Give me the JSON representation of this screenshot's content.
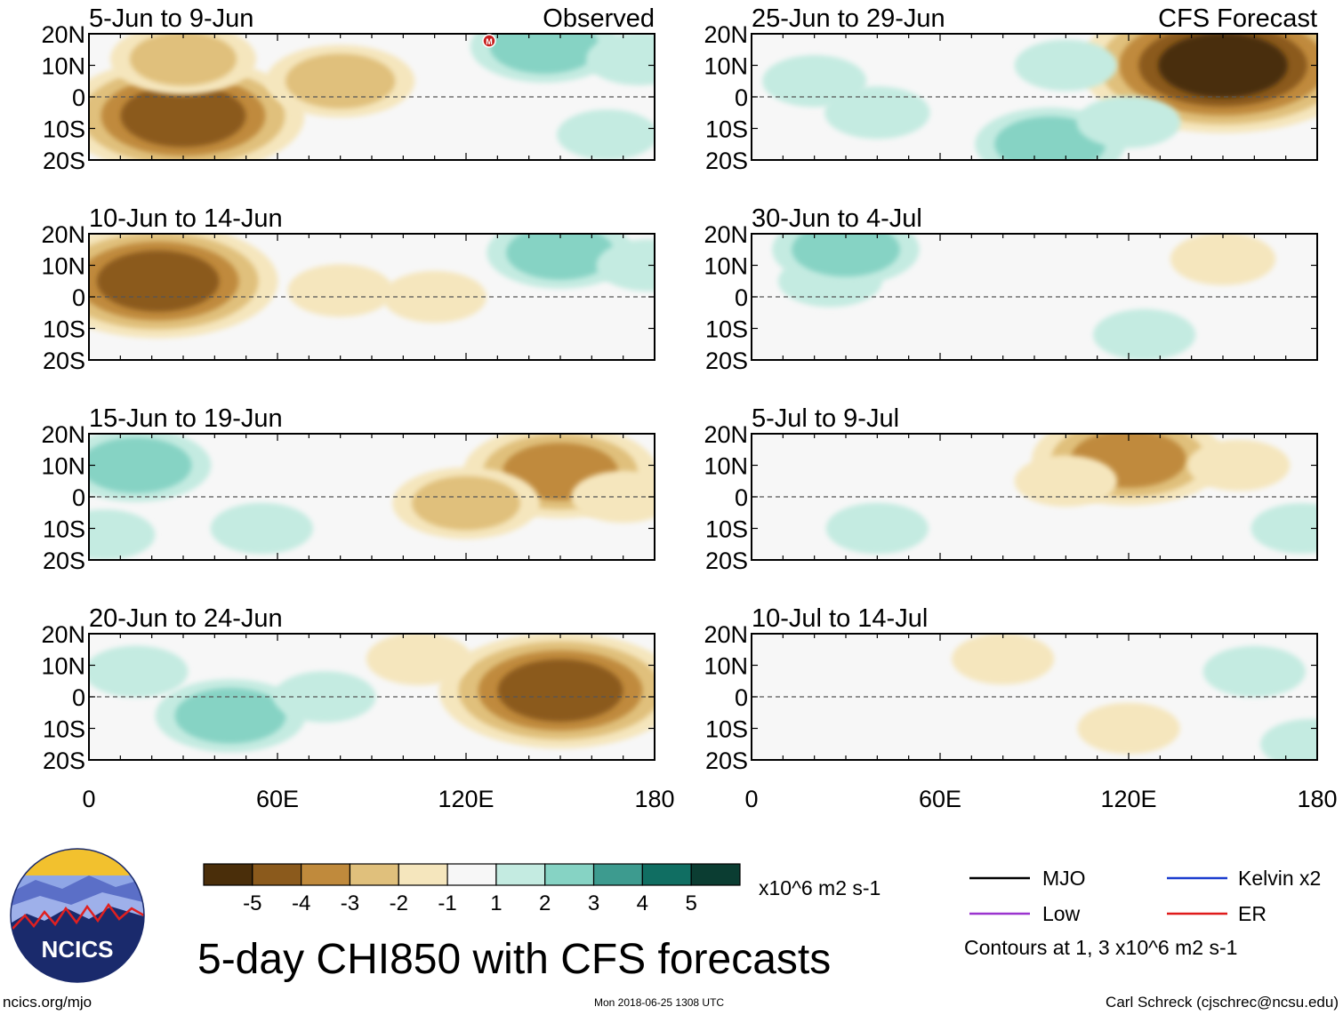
{
  "chart_data": {
    "type": "heatmap",
    "title": "5-day CHI850 with CFS forecasts",
    "variable": "CHI850 anomaly",
    "units": "x10^6 m2 s-1",
    "x_axis": {
      "range": [
        0,
        180
      ],
      "ticks": [
        "0",
        "60E",
        "120E",
        "180"
      ]
    },
    "y_axis": {
      "range": [
        -20,
        20
      ],
      "ticks": [
        "20N",
        "10N",
        "0",
        "10S",
        "20S"
      ]
    },
    "column_labels": {
      "left": "Observed",
      "right": "CFS Forecast"
    },
    "panels": [
      {
        "period": "5-Jun to 9-Jun",
        "source": "observed",
        "features": [
          {
            "kind": "anomaly",
            "lon": 30,
            "lat": -6,
            "value": -4.6
          },
          {
            "kind": "anomaly",
            "lon": 80,
            "lat": 5,
            "value": -2.4
          },
          {
            "kind": "anomaly",
            "lon": 30,
            "lat": 12,
            "value": -2
          },
          {
            "kind": "anomaly",
            "lon": 145,
            "lat": 16,
            "value": 2.4
          },
          {
            "kind": "anomaly",
            "lon": 175,
            "lat": 12,
            "value": 1.8
          },
          {
            "kind": "anomaly",
            "lon": 165,
            "lat": -12,
            "value": 1.2
          }
        ]
      },
      {
        "period": "10-Jun to 14-Jun",
        "source": "observed",
        "features": [
          {
            "kind": "anomaly",
            "lon": 22,
            "lat": 5,
            "value": -4.2
          },
          {
            "kind": "anomaly",
            "lon": 80,
            "lat": 2,
            "value": -1.8
          },
          {
            "kind": "anomaly",
            "lon": 110,
            "lat": 0,
            "value": -1.6
          },
          {
            "kind": "anomaly",
            "lon": 150,
            "lat": 14,
            "value": 2.2
          },
          {
            "kind": "anomaly",
            "lon": 178,
            "lat": 10,
            "value": 1.6
          }
        ]
      },
      {
        "period": "15-Jun to 19-Jun",
        "source": "observed",
        "features": [
          {
            "kind": "anomaly",
            "lon": 150,
            "lat": 8,
            "value": -3.2
          },
          {
            "kind": "anomaly",
            "lon": 120,
            "lat": -2,
            "value": -2.2
          },
          {
            "kind": "anomaly",
            "lon": 170,
            "lat": 0,
            "value": -1.6
          },
          {
            "kind": "anomaly",
            "lon": 15,
            "lat": 10,
            "value": 2.6
          },
          {
            "kind": "anomaly",
            "lon": 55,
            "lat": -10,
            "value": 1.4
          },
          {
            "kind": "anomaly",
            "lon": 5,
            "lat": -12,
            "value": 1.2
          }
        ]
      },
      {
        "period": "20-Jun to 24-Jun",
        "source": "observed",
        "features": [
          {
            "kind": "anomaly",
            "lon": 150,
            "lat": 2,
            "value": -4.6
          },
          {
            "kind": "anomaly",
            "lon": 105,
            "lat": 12,
            "value": -1.8
          },
          {
            "kind": "anomaly",
            "lon": 45,
            "lat": -6,
            "value": 2.6
          },
          {
            "kind": "anomaly",
            "lon": 15,
            "lat": 8,
            "value": 1.6
          },
          {
            "kind": "anomaly",
            "lon": 75,
            "lat": 0,
            "value": 1.4
          }
        ]
      },
      {
        "period": "25-Jun to 29-Jun",
        "source": "forecast",
        "features": [
          {
            "kind": "anomaly",
            "lon": 150,
            "lat": 10,
            "value": -5.2
          },
          {
            "kind": "anomaly",
            "lon": 40,
            "lat": -5,
            "value": 1.8
          },
          {
            "kind": "anomaly",
            "lon": 95,
            "lat": -15,
            "value": 2.6
          },
          {
            "kind": "anomaly",
            "lon": 20,
            "lat": 5,
            "value": 1.6
          },
          {
            "kind": "anomaly",
            "lon": 100,
            "lat": 10,
            "value": 1.4
          },
          {
            "kind": "anomaly",
            "lon": 120,
            "lat": -8,
            "value": 1.6
          }
        ]
      },
      {
        "period": "30-Jun to 4-Jul",
        "source": "forecast",
        "features": [
          {
            "kind": "anomaly",
            "lon": 150,
            "lat": 12,
            "value": -1.8
          },
          {
            "kind": "anomaly",
            "lon": 25,
            "lat": 5,
            "value": 1.6
          },
          {
            "kind": "anomaly",
            "lon": 30,
            "lat": 15,
            "value": 2.2
          },
          {
            "kind": "anomaly",
            "lon": 125,
            "lat": -12,
            "value": 1.4
          }
        ]
      },
      {
        "period": "5-Jul to 9-Jul",
        "source": "forecast",
        "features": [
          {
            "kind": "anomaly",
            "lon": 120,
            "lat": 12,
            "value": -3.2
          },
          {
            "kind": "anomaly",
            "lon": 100,
            "lat": 5,
            "value": -1.4
          },
          {
            "kind": "anomaly",
            "lon": 155,
            "lat": 10,
            "value": -1.4
          },
          {
            "kind": "anomaly",
            "lon": 40,
            "lat": -10,
            "value": 1.4
          },
          {
            "kind": "anomaly",
            "lon": 175,
            "lat": -10,
            "value": 1.2
          }
        ]
      },
      {
        "period": "10-Jul to 14-Jul",
        "source": "forecast",
        "features": [
          {
            "kind": "anomaly",
            "lon": 80,
            "lat": 12,
            "value": -1.4
          },
          {
            "kind": "anomaly",
            "lon": 120,
            "lat": -10,
            "value": -1.4
          },
          {
            "kind": "anomaly",
            "lon": 160,
            "lat": 8,
            "value": 1.4
          },
          {
            "kind": "anomaly",
            "lon": 178,
            "lat": -15,
            "value": 1.2
          }
        ]
      }
    ],
    "colorbar": {
      "tick_labels": [
        "-5",
        "-4",
        "-3",
        "-2",
        "-1",
        "1",
        "2",
        "3",
        "4",
        "5"
      ],
      "colors": [
        "#4a2e0a",
        "#8b5a1c",
        "#c08a3c",
        "#e0c07c",
        "#f5e6bd",
        "#f7f7f7",
        "#c4ebe1",
        "#86d3c4",
        "#3d9b8f",
        "#106e62",
        "#0b3d32"
      ],
      "units": "x10^6 m2 s-1"
    },
    "legend": [
      {
        "label": "MJO",
        "color": "#000000"
      },
      {
        "label": "Kelvin x2",
        "color": "#1a3ccf"
      },
      {
        "label": "Low",
        "color": "#9b34cf"
      },
      {
        "label": "ER",
        "color": "#e01b1b"
      }
    ],
    "contour_note": "Contours at 1, 3 x10^6 m2 s-1"
  },
  "branding": {
    "logo_text": "NCICS",
    "site": "ncics.org/mjo",
    "timestamp": "Mon 2018-06-25 1308 UTC",
    "author": "Carl Schreck (cjschrec@ncsu.edu)"
  },
  "marker": {
    "symbol": "M"
  }
}
